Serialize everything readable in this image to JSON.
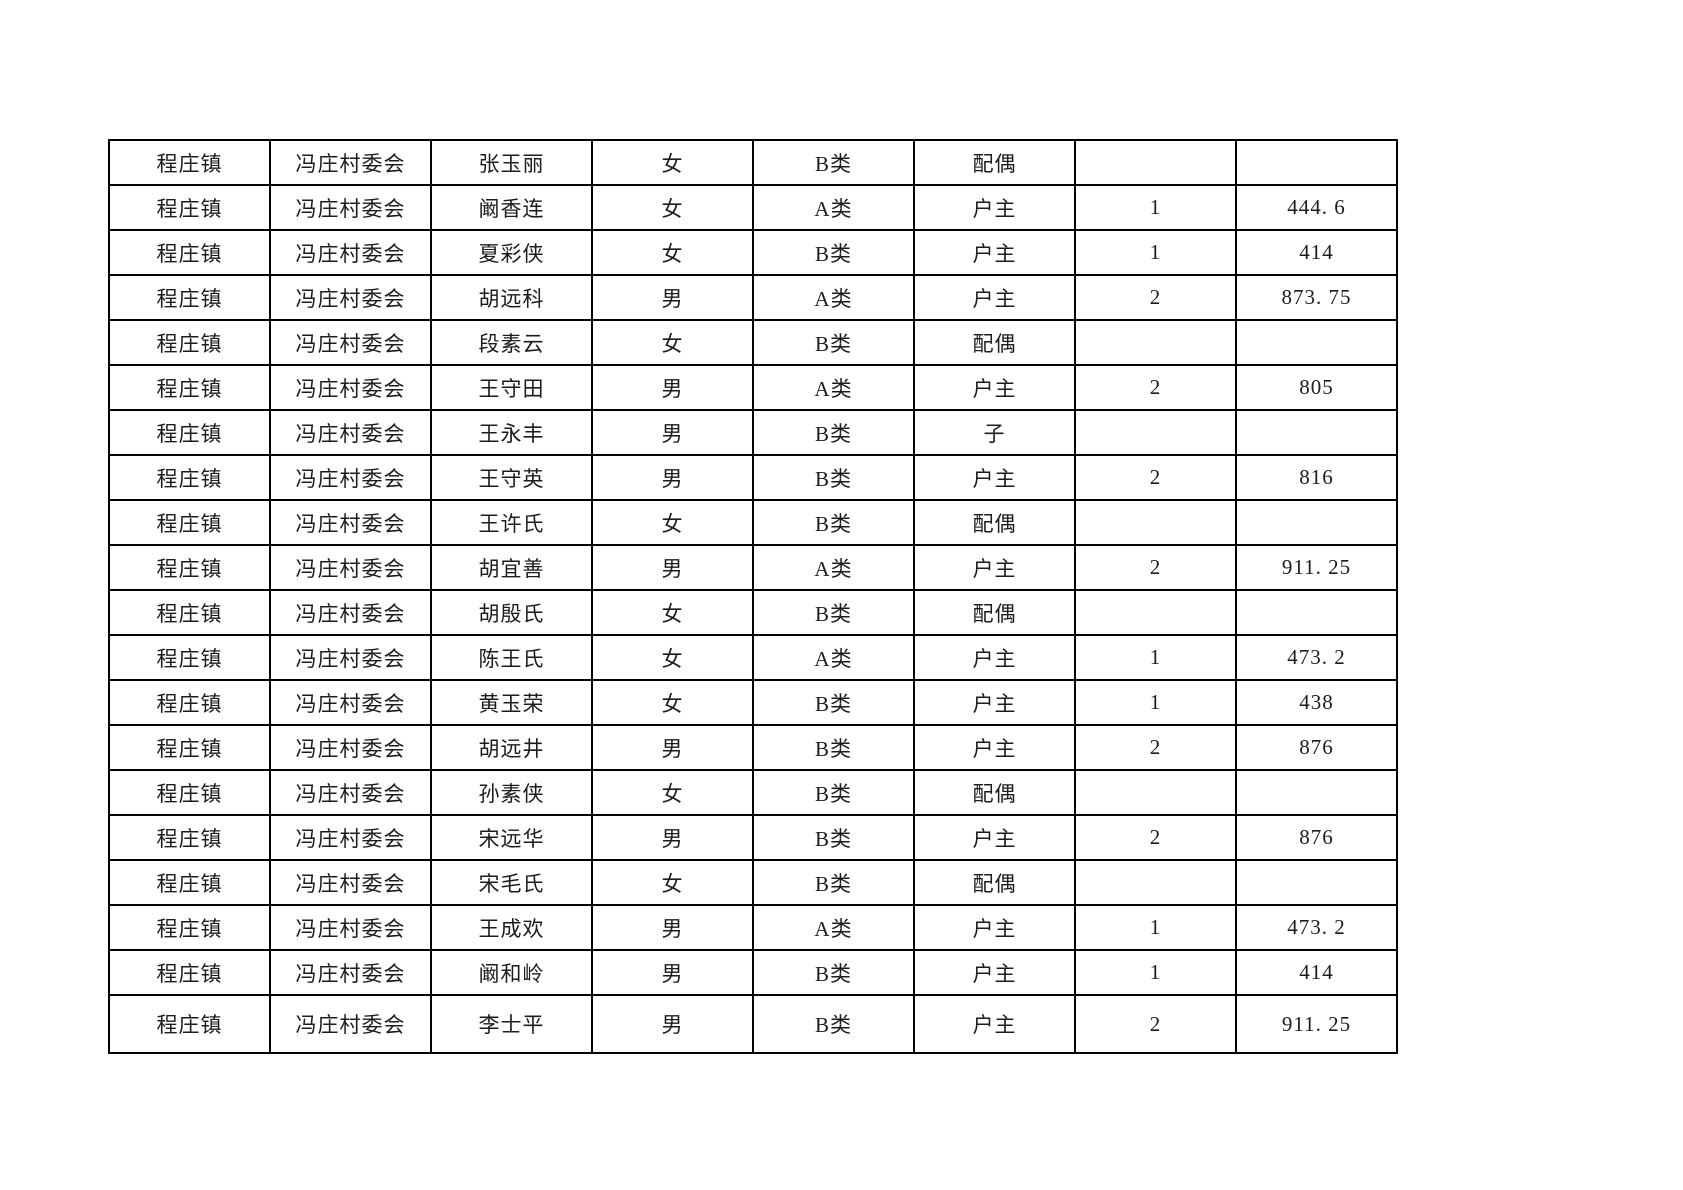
{
  "page": {
    "background_color": "#ffffff",
    "border_color": "#000000"
  },
  "table": {
    "columns": [
      "town",
      "village",
      "name",
      "gender",
      "category",
      "relation",
      "count",
      "amount"
    ],
    "rows": [
      {
        "town": "程庄镇",
        "village": "冯庄村委会",
        "name": "张玉丽",
        "gender": "女",
        "category": "B类",
        "relation": "配偶",
        "count": "",
        "amount": ""
      },
      {
        "town": "程庄镇",
        "village": "冯庄村委会",
        "name": "阚香连",
        "gender": "女",
        "category": "A类",
        "relation": "户主",
        "count": "1",
        "amount": "444. 6"
      },
      {
        "town": "程庄镇",
        "village": "冯庄村委会",
        "name": "夏彩侠",
        "gender": "女",
        "category": "B类",
        "relation": "户主",
        "count": "1",
        "amount": "414"
      },
      {
        "town": "程庄镇",
        "village": "冯庄村委会",
        "name": "胡远科",
        "gender": "男",
        "category": "A类",
        "relation": "户主",
        "count": "2",
        "amount": "873. 75"
      },
      {
        "town": "程庄镇",
        "village": "冯庄村委会",
        "name": "段素云",
        "gender": "女",
        "category": "B类",
        "relation": "配偶",
        "count": "",
        "amount": ""
      },
      {
        "town": "程庄镇",
        "village": "冯庄村委会",
        "name": "王守田",
        "gender": "男",
        "category": "A类",
        "relation": "户主",
        "count": "2",
        "amount": "805"
      },
      {
        "town": "程庄镇",
        "village": "冯庄村委会",
        "name": "王永丰",
        "gender": "男",
        "category": "B类",
        "relation": "子",
        "count": "",
        "amount": ""
      },
      {
        "town": "程庄镇",
        "village": "冯庄村委会",
        "name": "王守英",
        "gender": "男",
        "category": "B类",
        "relation": "户主",
        "count": "2",
        "amount": "816"
      },
      {
        "town": "程庄镇",
        "village": "冯庄村委会",
        "name": "王许氏",
        "gender": "女",
        "category": "B类",
        "relation": "配偶",
        "count": "",
        "amount": ""
      },
      {
        "town": "程庄镇",
        "village": "冯庄村委会",
        "name": "胡宜善",
        "gender": "男",
        "category": "A类",
        "relation": "户主",
        "count": "2",
        "amount": "911. 25"
      },
      {
        "town": "程庄镇",
        "village": "冯庄村委会",
        "name": "胡殷氏",
        "gender": "女",
        "category": "B类",
        "relation": "配偶",
        "count": "",
        "amount": ""
      },
      {
        "town": "程庄镇",
        "village": "冯庄村委会",
        "name": "陈王氏",
        "gender": "女",
        "category": "A类",
        "relation": "户主",
        "count": "1",
        "amount": "473. 2"
      },
      {
        "town": "程庄镇",
        "village": "冯庄村委会",
        "name": "黄玉荣",
        "gender": "女",
        "category": "B类",
        "relation": "户主",
        "count": "1",
        "amount": "438"
      },
      {
        "town": "程庄镇",
        "village": "冯庄村委会",
        "name": "胡远井",
        "gender": "男",
        "category": "B类",
        "relation": "户主",
        "count": "2",
        "amount": "876"
      },
      {
        "town": "程庄镇",
        "village": "冯庄村委会",
        "name": "孙素侠",
        "gender": "女",
        "category": "B类",
        "relation": "配偶",
        "count": "",
        "amount": ""
      },
      {
        "town": "程庄镇",
        "village": "冯庄村委会",
        "name": "宋远华",
        "gender": "男",
        "category": "B类",
        "relation": "户主",
        "count": "2",
        "amount": "876"
      },
      {
        "town": "程庄镇",
        "village": "冯庄村委会",
        "name": "宋毛氏",
        "gender": "女",
        "category": "B类",
        "relation": "配偶",
        "count": "",
        "amount": ""
      },
      {
        "town": "程庄镇",
        "village": "冯庄村委会",
        "name": "王成欢",
        "gender": "男",
        "category": "A类",
        "relation": "户主",
        "count": "1",
        "amount": "473. 2"
      },
      {
        "town": "程庄镇",
        "village": "冯庄村委会",
        "name": "阚和岭",
        "gender": "男",
        "category": "B类",
        "relation": "户主",
        "count": "1",
        "amount": "414"
      },
      {
        "town": "程庄镇",
        "village": "冯庄村委会",
        "name": "李士平",
        "gender": "男",
        "category": "B类",
        "relation": "户主",
        "count": "2",
        "amount": "911. 25"
      }
    ]
  }
}
